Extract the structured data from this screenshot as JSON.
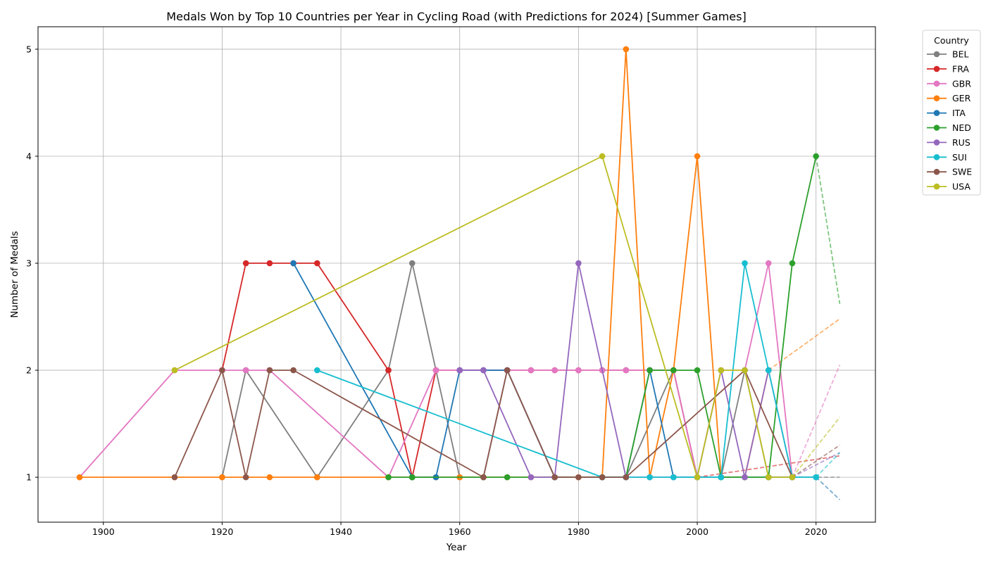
{
  "chart_data": {
    "type": "line",
    "title": "Medals Won by Top 10 Countries per Year in Cycling Road (with Predictions for 2024) [Summer Games]",
    "xlabel": "Year",
    "ylabel": "Number of Medals",
    "xlim": [
      1889,
      2030
    ],
    "ylim": [
      0.58,
      5.21
    ],
    "xticks": [
      1900,
      1920,
      1940,
      1960,
      1980,
      2000,
      2020
    ],
    "yticks": [
      1,
      2,
      3,
      4,
      5
    ],
    "grid": true,
    "legend": {
      "title": "Country",
      "placement": "outside-top-right"
    },
    "series": [
      {
        "name": "BEL",
        "color": "#7f7f7f",
        "x": [
          1920,
          1924,
          1936,
          1948,
          1952,
          1956,
          1960,
          1964,
          1968,
          1976,
          1984,
          1988,
          1996,
          2000,
          2004,
          2008,
          2012,
          2016
        ],
        "y": [
          1,
          2,
          1,
          2,
          3,
          2,
          1,
          1,
          2,
          1,
          1,
          1,
          2,
          1,
          1,
          2,
          1,
          1
        ],
        "prediction": [
          2016,
          1,
          2024,
          1.0
        ]
      },
      {
        "name": "FRA",
        "color": "#d62728",
        "x": [
          1920,
          1924,
          1928,
          1932,
          1936,
          1948,
          1952,
          1956,
          1960,
          1964,
          1968,
          1972,
          1976,
          1980,
          1984,
          1988,
          1992,
          1996,
          2000
        ],
        "y": [
          2,
          3,
          3,
          3,
          3,
          2,
          1,
          2,
          2,
          2,
          2,
          2,
          2,
          2,
          2,
          2,
          2,
          2,
          1
        ],
        "prediction": [
          2000,
          1,
          2024,
          1.2
        ]
      },
      {
        "name": "GBR",
        "color": "#e377c2",
        "x": [
          1896,
          1912,
          1920,
          1924,
          1928,
          1948,
          1956,
          1960,
          1964,
          1968,
          1972,
          1976,
          1980,
          1984,
          1988,
          1992,
          1996,
          2000,
          2004,
          2008,
          2012,
          2016
        ],
        "y": [
          1,
          2,
          2,
          2,
          2,
          1,
          2,
          2,
          2,
          2,
          2,
          2,
          2,
          2,
          2,
          2,
          2,
          1,
          2,
          2,
          3,
          1
        ],
        "prediction": [
          2016,
          1,
          2024,
          2.05
        ]
      },
      {
        "name": "GER",
        "color": "#ff7f0e",
        "x": [
          1896,
          1912,
          1920,
          1928,
          1936,
          1948,
          1952,
          1956,
          1960,
          1964,
          1968,
          1972,
          1976,
          1980,
          1984,
          1988,
          1992,
          1996,
          2000,
          2004,
          2008,
          2012
        ],
        "y": [
          1,
          1,
          1,
          1,
          1,
          1,
          1,
          1,
          1,
          1,
          1,
          1,
          1,
          1,
          1,
          5,
          1,
          2,
          4,
          1,
          1,
          2
        ],
        "prediction": [
          2012,
          2,
          2024,
          2.48
        ]
      },
      {
        "name": "ITA",
        "color": "#1f77b4",
        "x": [
          1932,
          1952,
          1956,
          1960,
          1964,
          1968,
          1976,
          1984,
          1988,
          1992,
          1996,
          2000,
          2004,
          2008,
          2012,
          2016,
          2020
        ],
        "y": [
          3,
          1,
          1,
          2,
          2,
          2,
          1,
          1,
          1,
          2,
          1,
          1,
          1,
          1,
          1,
          1,
          1
        ],
        "prediction": [
          2020,
          1,
          2024,
          0.79
        ]
      },
      {
        "name": "NED",
        "color": "#2ca02c",
        "x": [
          1948,
          1952,
          1964,
          1968,
          1976,
          1984,
          1988,
          1992,
          1996,
          2000,
          2004,
          2008,
          2012,
          2016,
          2020
        ],
        "y": [
          1,
          1,
          1,
          1,
          1,
          1,
          1,
          2,
          2,
          2,
          1,
          1,
          1,
          3,
          4
        ],
        "prediction": [
          2020,
          4,
          2024,
          2.62
        ]
      },
      {
        "name": "RUS",
        "color": "#9467bd",
        "x": [
          1960,
          1964,
          1972,
          1976,
          1980,
          1988,
          1992,
          1996,
          2000,
          2004,
          2008,
          2012,
          2016
        ],
        "y": [
          2,
          2,
          1,
          1,
          3,
          1,
          1,
          1,
          1,
          2,
          1,
          2,
          1
        ],
        "prediction": [
          2016,
          1,
          2024,
          1.23
        ]
      },
      {
        "name": "SUI",
        "color": "#17becf",
        "x": [
          1936,
          1984,
          1988,
          1992,
          1996,
          2000,
          2004,
          2008,
          2012,
          2016,
          2020
        ],
        "y": [
          2,
          1,
          1,
          1,
          1,
          1,
          1,
          3,
          2,
          1,
          1
        ],
        "prediction": [
          2020,
          1,
          2024,
          1.23
        ]
      },
      {
        "name": "SWE",
        "color": "#8c564b",
        "x": [
          1912,
          1920,
          1924,
          1928,
          1932,
          1964,
          1968,
          1976,
          1980,
          1984,
          1988,
          2008,
          2016
        ],
        "y": [
          1,
          2,
          1,
          2,
          2,
          1,
          2,
          1,
          1,
          1,
          1,
          2,
          1
        ],
        "prediction": [
          2016,
          1,
          2024,
          1.3
        ]
      },
      {
        "name": "USA",
        "color": "#bcbd22",
        "x": [
          1912,
          1984,
          2000,
          2004,
          2008,
          2012,
          2016
        ],
        "y": [
          2,
          4,
          1,
          2,
          2,
          1,
          1
        ],
        "prediction": [
          2016,
          1,
          2024,
          1.56
        ]
      }
    ]
  }
}
